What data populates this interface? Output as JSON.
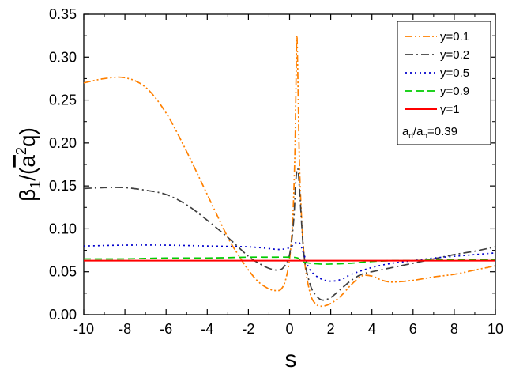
{
  "chart_data": {
    "type": "line",
    "xlabel": "s",
    "ylabel": {
      "base": "β",
      "sub": "1",
      "mid": "/(",
      "abar": "a",
      "sup": "2",
      "tail": "q)"
    },
    "xlim": [
      -10,
      10
    ],
    "ylim": [
      0,
      0.35
    ],
    "xticks": [
      "-10",
      "-8",
      "-6",
      "-4",
      "-2",
      "0",
      "2",
      "4",
      "6",
      "8",
      "10"
    ],
    "yticks": [
      "0.00",
      "0.05",
      "0.10",
      "0.15",
      "0.20",
      "0.25",
      "0.30",
      "0.35"
    ],
    "grid": false,
    "legend_position": "top-right",
    "annotation": {
      "a": "a",
      "sub1": "d",
      "slash": "/a",
      "sub2": "h",
      "value": "=0.39"
    },
    "series": [
      {
        "name": "y=0.1",
        "color": "#FF8000",
        "dash": "dash-dot-dot",
        "x": [
          -10,
          -9,
          -8,
          -7,
          -6,
          -5,
          -4,
          -3,
          -2.5,
          -2,
          -1.5,
          -1,
          -0.6,
          -0.4,
          -0.2,
          0,
          0.15,
          0.25,
          0.3,
          0.33,
          0.36,
          0.4,
          0.5,
          0.7,
          1,
          1.3,
          1.6,
          2,
          2.5,
          3,
          3.5,
          4,
          4.5,
          5,
          6,
          7,
          8,
          9,
          10
        ],
        "y": [
          0.27,
          0.275,
          0.276,
          0.265,
          0.235,
          0.19,
          0.14,
          0.09,
          0.07,
          0.052,
          0.038,
          0.03,
          0.028,
          0.03,
          0.04,
          0.065,
          0.11,
          0.18,
          0.25,
          0.3,
          0.325,
          0.28,
          0.16,
          0.07,
          0.025,
          0.012,
          0.01,
          0.013,
          0.022,
          0.035,
          0.045,
          0.045,
          0.04,
          0.038,
          0.04,
          0.044,
          0.047,
          0.052,
          0.057
        ]
      },
      {
        "name": "y=0.2",
        "color": "#404040",
        "dash": "dash-dot",
        "x": [
          -10,
          -9,
          -8,
          -7,
          -6,
          -5,
          -4,
          -3,
          -2,
          -1.5,
          -1,
          -0.6,
          -0.3,
          0,
          0.2,
          0.3,
          0.4,
          0.5,
          0.7,
          1,
          1.3,
          1.6,
          2,
          2.5,
          3,
          3.5,
          4,
          5,
          6,
          7,
          8,
          9,
          10
        ],
        "y": [
          0.147,
          0.148,
          0.148,
          0.145,
          0.14,
          0.128,
          0.11,
          0.09,
          0.068,
          0.06,
          0.054,
          0.052,
          0.055,
          0.07,
          0.11,
          0.155,
          0.17,
          0.14,
          0.07,
          0.035,
          0.022,
          0.017,
          0.02,
          0.03,
          0.04,
          0.047,
          0.05,
          0.055,
          0.06,
          0.065,
          0.07,
          0.074,
          0.079
        ]
      },
      {
        "name": "y=0.5",
        "color": "#0000CC",
        "dash": "dot",
        "x": [
          -10,
          -8,
          -6,
          -4,
          -2,
          -1,
          -0.5,
          0,
          0.3,
          0.5,
          0.7,
          1,
          1.5,
          2,
          2.5,
          3,
          4,
          5,
          6,
          7,
          8,
          9,
          10
        ],
        "y": [
          0.08,
          0.081,
          0.081,
          0.08,
          0.079,
          0.077,
          0.076,
          0.078,
          0.084,
          0.083,
          0.07,
          0.052,
          0.042,
          0.039,
          0.041,
          0.047,
          0.055,
          0.06,
          0.063,
          0.066,
          0.068,
          0.07,
          0.072
        ]
      },
      {
        "name": "y=0.9",
        "color": "#00CC00",
        "dash": "dash",
        "x": [
          -10,
          -8,
          -6,
          -4,
          -2,
          -1,
          0,
          0.4,
          0.6,
          1,
          1.5,
          2,
          3,
          4,
          5,
          6,
          7,
          8,
          10
        ],
        "y": [
          0.065,
          0.065,
          0.066,
          0.066,
          0.067,
          0.067,
          0.067,
          0.066,
          0.062,
          0.06,
          0.059,
          0.059,
          0.06,
          0.062,
          0.063,
          0.063,
          0.064,
          0.064,
          0.064
        ]
      },
      {
        "name": "y=1",
        "color": "#FF0000",
        "dash": "solid",
        "x": [
          -10,
          10
        ],
        "y": [
          0.063,
          0.063
        ]
      }
    ]
  }
}
